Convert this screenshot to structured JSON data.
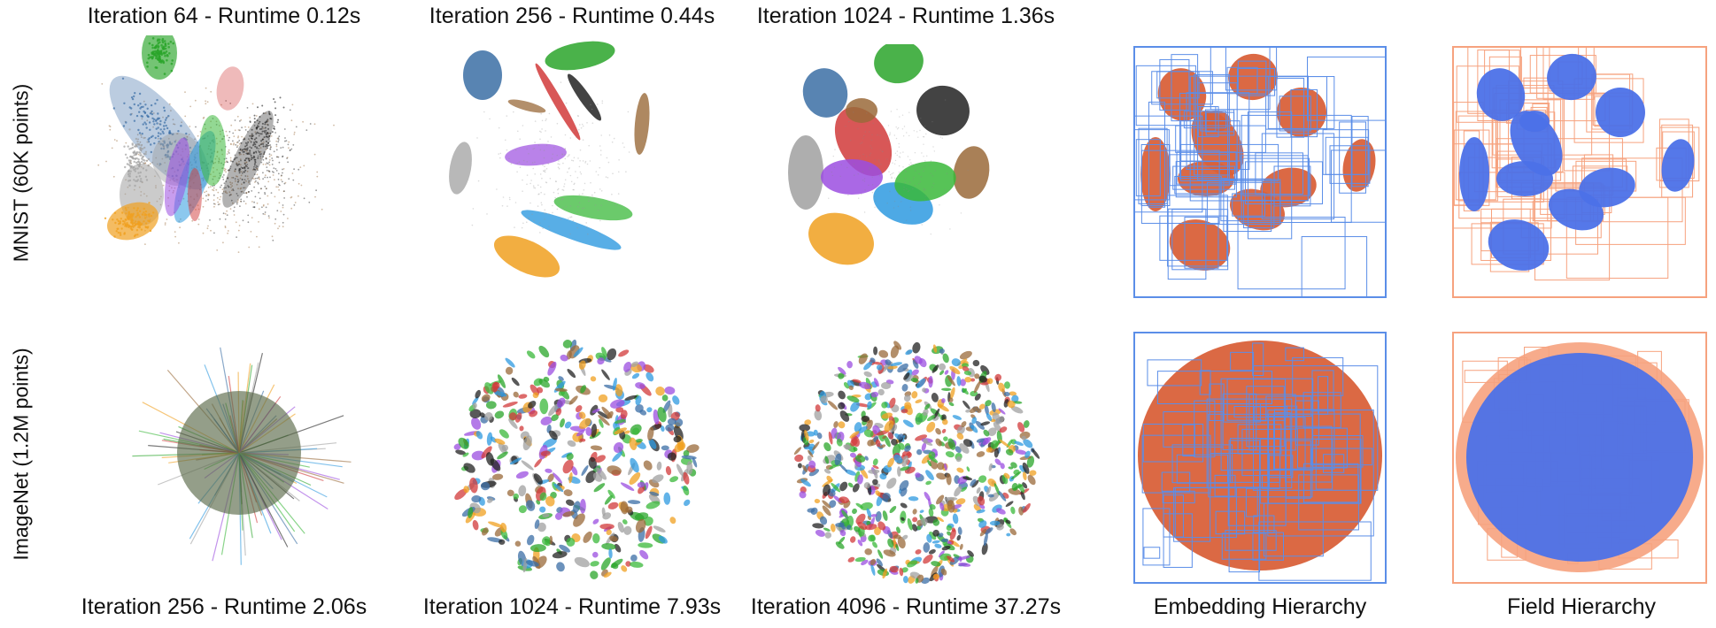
{
  "row_labels": {
    "mnist": "MNIST (60K points)",
    "imagenet": "ImageNet (1.2M points)"
  },
  "top_titles": [
    "Iteration 64 - Runtime 0.12s",
    "Iteration 256 - Runtime 0.44s",
    "Iteration 1024 - Runtime 1.36s"
  ],
  "bottom_titles": [
    "Iteration 256 - Runtime 2.06s",
    "Iteration 1024 - Runtime 7.93s",
    "Iteration 4096 - Runtime 37.27s",
    "Embedding Hierarchy",
    "Field Hierarchy"
  ],
  "colors": {
    "digits": [
      "#3b6ea5",
      "#2aa52a",
      "#d13a3a",
      "#222222",
      "#9a6a3a",
      "#a0a0a0",
      "#9b4de0",
      "#f0a020",
      "#2e9ae0",
      "#3ab83a"
    ],
    "embedding_box": "#5b8ee8",
    "embedding_fill": "#d9613a",
    "field_box": "#f6a27e",
    "field_fill": "#4c71e8"
  }
}
